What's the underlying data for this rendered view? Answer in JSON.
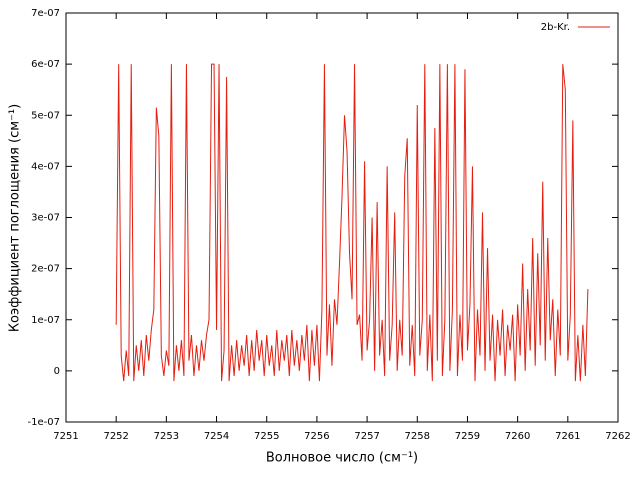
{
  "chart_data": {
    "type": "line",
    "xlabel": "Волновое число (см⁻¹)",
    "ylabel": "Коэффициент поглощения (см⁻¹)",
    "xlim": [
      7251,
      7262
    ],
    "xticks": [
      7251,
      7252,
      7253,
      7254,
      7255,
      7256,
      7257,
      7258,
      7259,
      7260,
      7261,
      7262
    ],
    "ylim": [
      -1e-07,
      7e-07
    ],
    "yticks": [
      {
        "value": -1e-07,
        "label": "-1e-07"
      },
      0,
      {
        "value": 1e-07,
        "label": "1e-07"
      },
      {
        "value": 2e-07,
        "label": "2e-07"
      },
      {
        "value": 3e-07,
        "label": "3e-07"
      },
      {
        "value": 4e-07,
        "label": "4e-07"
      },
      {
        "value": 5e-07,
        "label": "5e-07"
      },
      {
        "value": 6e-07,
        "label": "6e-07"
      },
      {
        "value": 7e-07,
        "label": "7e-07"
      }
    ],
    "legend": "top-right",
    "x": [
      7252,
      7252.05,
      7252.1,
      7252.15,
      7252.2,
      7252.25,
      7252.3,
      7252.35,
      7252.4,
      7252.45,
      7252.5,
      7252.55,
      7252.6,
      7252.65,
      7252.7,
      7252.75,
      7252.8,
      7252.85,
      7252.9,
      7252.95,
      7253,
      7253.05,
      7253.1,
      7253.15,
      7253.2,
      7253.25,
      7253.3,
      7253.35,
      7253.4,
      7253.45,
      7253.5,
      7253.55,
      7253.6,
      7253.65,
      7253.7,
      7253.75,
      7253.8,
      7253.85,
      7253.9,
      7253.95,
      7254,
      7254.05,
      7254.1,
      7254.15,
      7254.2,
      7254.25,
      7254.3,
      7254.35,
      7254.4,
      7254.45,
      7254.5,
      7254.55,
      7254.6,
      7254.65,
      7254.7,
      7254.75,
      7254.8,
      7254.85,
      7254.9,
      7254.95,
      7255,
      7255.05,
      7255.1,
      7255.15,
      7255.2,
      7255.25,
      7255.3,
      7255.35,
      7255.4,
      7255.45,
      7255.5,
      7255.55,
      7255.6,
      7255.65,
      7255.7,
      7255.75,
      7255.8,
      7255.85,
      7255.9,
      7255.95,
      7256,
      7256.05,
      7256.1,
      7256.15,
      7256.2,
      7256.25,
      7256.3,
      7256.35,
      7256.4,
      7256.45,
      7256.5,
      7256.55,
      7256.6,
      7256.65,
      7256.7,
      7256.75,
      7256.8,
      7256.85,
      7256.9,
      7256.95,
      7257,
      7257.05,
      7257.1,
      7257.15,
      7257.2,
      7257.25,
      7257.3,
      7257.35,
      7257.4,
      7257.45,
      7257.5,
      7257.55,
      7257.6,
      7257.65,
      7257.7,
      7257.75,
      7257.8,
      7257.85,
      7257.9,
      7257.95,
      7258,
      7258.05,
      7258.1,
      7258.15,
      7258.2,
      7258.25,
      7258.3,
      7258.35,
      7258.4,
      7258.45,
      7258.5,
      7258.55,
      7258.6,
      7258.65,
      7258.7,
      7258.75,
      7258.8,
      7258.85,
      7258.9,
      7258.95,
      7259,
      7259.05,
      7259.1,
      7259.15,
      7259.2,
      7259.25,
      7259.3,
      7259.35,
      7259.4,
      7259.45,
      7259.5,
      7259.55,
      7259.6,
      7259.65,
      7259.7,
      7259.75,
      7259.8,
      7259.85,
      7259.9,
      7259.95,
      7260,
      7260.05,
      7260.1,
      7260.15,
      7260.2,
      7260.25,
      7260.3,
      7260.35,
      7260.4,
      7260.45,
      7260.5,
      7260.55,
      7260.6,
      7260.65,
      7260.7,
      7260.75,
      7260.8,
      7260.85,
      7260.9,
      7260.95,
      7261,
      7261.05,
      7261.1,
      7261.15,
      7261.2,
      7261.25,
      7261.3,
      7261.35,
      7261.4
    ],
    "series": [
      {
        "name": "2b-Kr.",
        "color": "#e51e10",
        "values": [
          9e-08,
          6e-07,
          3e-08,
          -2e-08,
          4e-08,
          -1e-08,
          6e-07,
          -2e-08,
          5e-08,
          0,
          6e-08,
          -1e-08,
          7e-08,
          2e-08,
          8e-08,
          1.2e-07,
          5.15e-07,
          4.6e-07,
          3e-08,
          -1e-08,
          4e-08,
          1e-08,
          6e-07,
          -2e-08,
          5e-08,
          0,
          6e-08,
          -1e-08,
          6e-07,
          2e-08,
          7e-08,
          -1e-08,
          5e-08,
          0,
          6e-08,
          2e-08,
          7e-08,
          1e-07,
          6e-07,
          6e-07,
          8e-08,
          6e-07,
          -2e-08,
          4e-08,
          5.75e-07,
          -2e-08,
          5e-08,
          -1e-08,
          6e-08,
          0,
          5e-08,
          1e-08,
          7e-08,
          -1e-08,
          6e-08,
          0,
          8e-08,
          2e-08,
          6e-08,
          -1e-08,
          7e-08,
          1e-08,
          5e-08,
          -1e-08,
          8e-08,
          0,
          6e-08,
          2e-08,
          7e-08,
          -1e-08,
          8e-08,
          1e-08,
          6e-08,
          0,
          7e-08,
          2e-08,
          9e-08,
          -2e-08,
          8e-08,
          1e-08,
          9e-08,
          -2e-08,
          1.2e-07,
          6e-07,
          3e-08,
          1.3e-07,
          1e-08,
          1.4e-07,
          9e-08,
          2.1e-07,
          3.4e-07,
          5e-07,
          4.3e-07,
          2.3e-07,
          1.4e-07,
          6e-07,
          9e-08,
          1.1e-07,
          2e-08,
          4.1e-07,
          4e-08,
          1e-07,
          3e-07,
          0,
          3.3e-07,
          3e-08,
          1e-07,
          -1e-08,
          4e-07,
          2e-08,
          9e-08,
          3.1e-07,
          0,
          1e-07,
          3e-08,
          3.8e-07,
          4.55e-07,
          1e-08,
          9e-08,
          -1e-08,
          5.2e-07,
          3e-08,
          1e-07,
          6e-07,
          0,
          1.1e-07,
          -2e-08,
          4.75e-07,
          2e-08,
          6e-07,
          -1e-08,
          1e-07,
          6e-07,
          0,
          1.2e-07,
          6e-07,
          -1e-08,
          1.1e-07,
          2e-08,
          5.9e-07,
          4e-08,
          1.3e-07,
          4e-07,
          -2e-08,
          1.2e-07,
          3e-08,
          3.1e-07,
          0,
          2.4e-07,
          2e-08,
          1.1e-07,
          -2e-08,
          1e-07,
          3e-08,
          1.2e-07,
          -1e-08,
          9e-08,
          4e-08,
          1.1e-07,
          -2e-08,
          1.3e-07,
          3e-08,
          2.1e-07,
          0,
          1.6e-07,
          4e-08,
          2.6e-07,
          1e-08,
          2.3e-07,
          5e-08,
          3.7e-07,
          2e-08,
          2.6e-07,
          6e-08,
          1.4e-07,
          -1e-08,
          1.2e-07,
          3e-08,
          6e-07,
          5.5e-07,
          2e-08,
          1.1e-07,
          4.9e-07,
          -2e-08,
          7e-08,
          -2e-08,
          9e-08,
          -1e-08,
          1.6e-07
        ]
      }
    ]
  }
}
